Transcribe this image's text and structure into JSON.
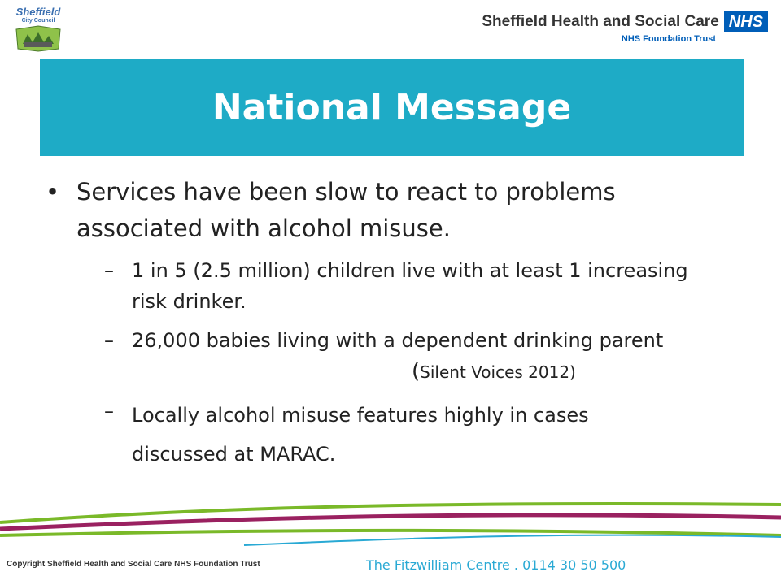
{
  "logos": {
    "council_main": "Sheffield",
    "council_sub": "City Council",
    "trust_name": "Sheffield Health and Social Care",
    "nhs_badge": "NHS",
    "trust_sub": "NHS Foundation Trust"
  },
  "slide": {
    "title": "National Message",
    "bullet": "Services have been slow to react to problems associated with alcohol misuse.",
    "sub_bullets": [
      "1 in 5 (2.5 million) children live with at least 1 increasing risk drinker.",
      "26,000 babies living with a dependent drinking parent",
      "Locally alcohol misuse features highly in cases"
    ],
    "citation_open": "(",
    "citation_text": "Silent Voices 2012)",
    "last_line_cont": "discussed at MARAC."
  },
  "footer": {
    "copyright": "Copyright Sheffield Health and Social Care NHS Foundation Trust",
    "contact": "The Fitzwilliam Centre . 0114 30 50 500"
  },
  "colors": {
    "title_band": "#1eabc6",
    "wave_green": "#7ab929",
    "wave_purple": "#9a2160",
    "wave_teal": "#29a9d4",
    "nhs_blue": "#005eb8"
  }
}
